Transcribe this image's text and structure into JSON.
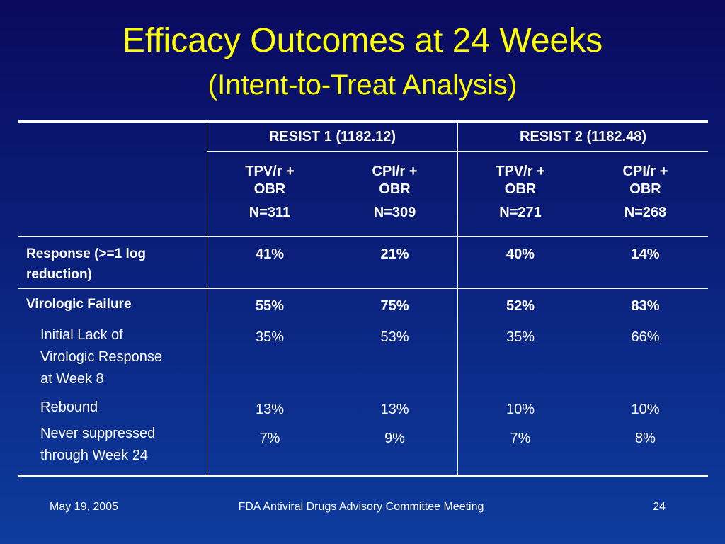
{
  "slide": {
    "title": "Efficacy Outcomes at 24 Weeks",
    "subtitle": "(Intent-to-Treat Analysis)"
  },
  "table": {
    "groups": [
      "RESIST 1 (1182.12)",
      "RESIST 2 (1182.48)"
    ],
    "arms": [
      {
        "l1": "TPV/r +",
        "l2": "OBR",
        "n": "N=311"
      },
      {
        "l1": "CPI/r +",
        "l2": "OBR",
        "n": "N=309"
      },
      {
        "l1": "TPV/r +",
        "l2": "OBR",
        "n": "N=271"
      },
      {
        "l1": "CPI/r +",
        "l2": "OBR",
        "n": "N=268"
      }
    ],
    "rows": {
      "response": {
        "label1": "Response (>=1 log",
        "label2": "reduction)",
        "values": [
          "41%",
          "21%",
          "40%",
          "14%"
        ]
      },
      "failure": {
        "label": "Virologic Failure",
        "values": [
          "55%",
          "75%",
          "52%",
          "83%"
        ]
      },
      "initial": {
        "label1": "Initial Lack of",
        "label2": "Virologic Response",
        "label3": "at Week 8",
        "values": [
          "35%",
          "53%",
          "35%",
          "66%"
        ]
      },
      "rebound": {
        "label": "Rebound",
        "values": [
          "13%",
          "13%",
          "10%",
          "10%"
        ]
      },
      "never": {
        "label1": "Never suppressed",
        "label2": "through Week 24",
        "values": [
          "7%",
          "9%",
          "7%",
          "8%"
        ]
      }
    }
  },
  "footer": {
    "date": "May 19, 2005",
    "meeting": "FDA Antiviral Drugs Advisory Committee Meeting",
    "page": "24"
  }
}
